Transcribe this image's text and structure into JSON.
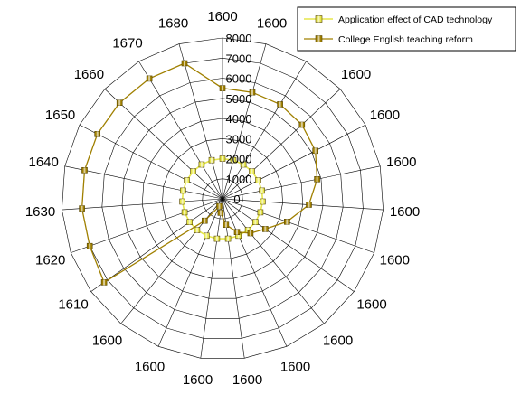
{
  "chart_data": {
    "type": "radar",
    "categories": [
      "1600",
      "1600",
      "1600",
      "1600",
      "1600",
      "1600",
      "1600",
      "1600",
      "1600",
      "1600",
      "1600",
      "1600",
      "1600",
      "1600",
      "1600",
      "1610",
      "1620",
      "1630",
      "1640",
      "1650",
      "1660",
      "1670",
      "1680"
    ],
    "r_ticks": [
      "0",
      "1000",
      "2000",
      "3000",
      "4000",
      "5000",
      "6000",
      "7000",
      "8000"
    ],
    "rlim": [
      0,
      8000
    ],
    "legend_position": "top-right",
    "series": [
      {
        "name": "Application effect of CAD technology",
        "color": "#e6e64c",
        "values": [
          2000,
          2000,
          2000,
          2000,
          2000,
          2000,
          2000,
          2000,
          2000,
          2000,
          2000,
          2000,
          2000,
          2000,
          2000,
          2000,
          2000,
          2000,
          2000,
          2000,
          2000,
          2000,
          2000
        ]
      },
      {
        "name": "College English teaching reform",
        "color": "#a08000",
        "values": [
          5500,
          5500,
          5500,
          5400,
          5200,
          4800,
          4300,
          3400,
          2600,
          2200,
          1800,
          1300,
          700,
          400,
          1400,
          7200,
          7000,
          7000,
          7000,
          7000,
          7000,
          7000,
          7000
        ]
      }
    ]
  }
}
